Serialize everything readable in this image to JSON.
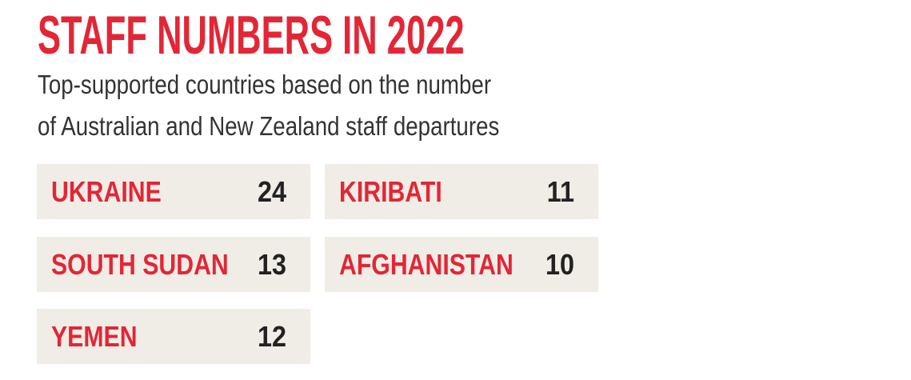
{
  "header": {
    "title": "STAFF NUMBERS IN 2022",
    "subtitle_lines": [
      "Top-supported countries based on the number",
      "of Australian and New Zealand staff departures"
    ]
  },
  "items": [
    {
      "country": "UKRAINE",
      "value": 24
    },
    {
      "country": "SOUTH SUDAN",
      "value": 13
    },
    {
      "country": "YEMEN",
      "value": 12
    },
    {
      "country": "KIRIBATI",
      "value": 11
    },
    {
      "country": "AFGHANISTAN",
      "value": 10
    }
  ]
}
